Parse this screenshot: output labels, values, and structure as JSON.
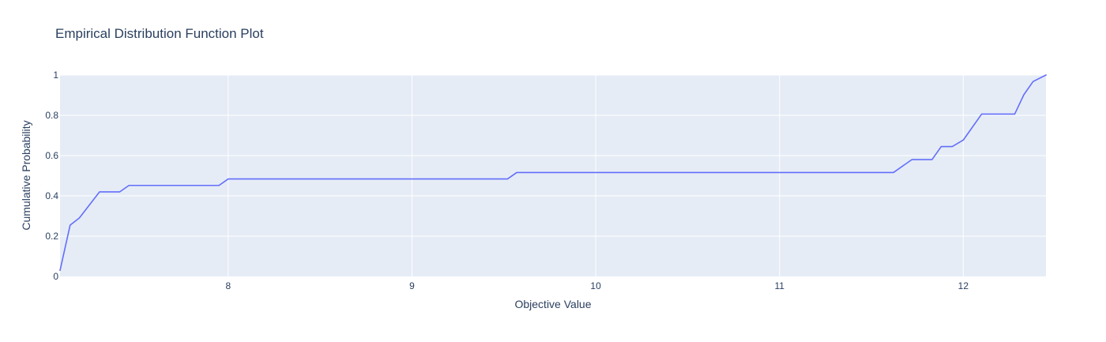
{
  "chart_data": {
    "type": "line",
    "title": "Empirical Distribution Function Plot",
    "xlabel": "Objective Value",
    "ylabel": "Cumulative Probability",
    "xlim": [
      7.085,
      12.45
    ],
    "ylim": [
      0,
      1
    ],
    "x_ticks": [
      8,
      9,
      10,
      11,
      12
    ],
    "y_ticks": [
      0,
      0.2,
      0.4,
      0.6,
      0.8,
      1
    ],
    "y_tick_labels": [
      "0",
      "0.2",
      "0.4",
      "0.6",
      "0.8",
      "1"
    ],
    "grid": true,
    "plot_background": "#e5ecf6",
    "grid_color": "#ffffff",
    "line_color": "#636efa",
    "series": [
      {
        "x": [
          7.085,
          7.14,
          7.19,
          7.3,
          7.41,
          7.46,
          7.95,
          8.0,
          9.52,
          9.57,
          11.62,
          11.72,
          11.83,
          11.88,
          11.94,
          12.0,
          12.1,
          12.28,
          12.33,
          12.38,
          12.45
        ],
        "y": [
          0.03,
          0.255,
          0.29,
          0.42,
          0.42,
          0.452,
          0.452,
          0.484,
          0.484,
          0.516,
          0.516,
          0.58,
          0.58,
          0.645,
          0.645,
          0.677,
          0.806,
          0.806,
          0.903,
          0.968,
          1.0
        ]
      }
    ]
  }
}
